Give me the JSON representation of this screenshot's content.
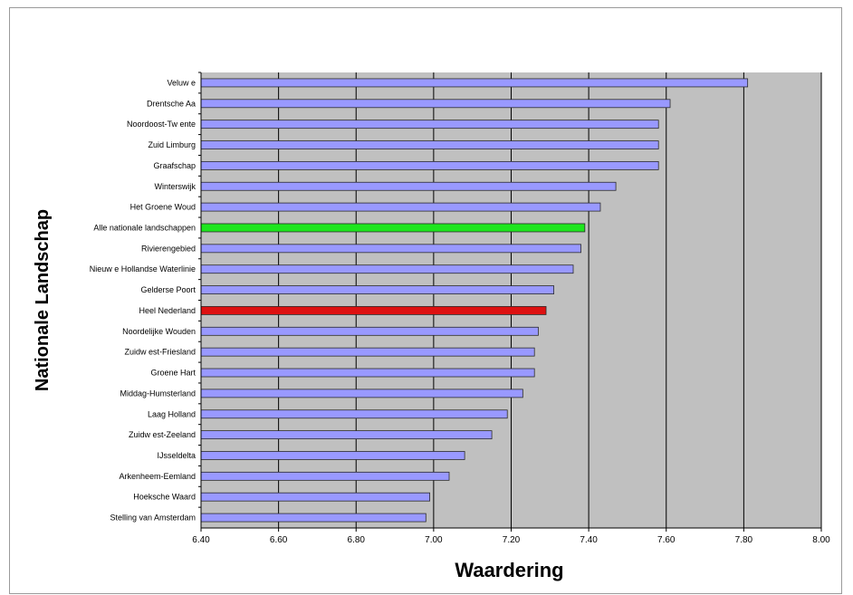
{
  "chart_data": {
    "type": "bar",
    "orientation": "horizontal",
    "title": "",
    "xlabel": "Waardering",
    "ylabel": "Nationale Landschap",
    "xlim": [
      6.4,
      8.0
    ],
    "xticks": [
      "6.40",
      "6.60",
      "6.80",
      "7.00",
      "7.20",
      "7.40",
      "7.60",
      "7.80",
      "8.00"
    ],
    "grid": true,
    "categories": [
      "Veluw e",
      "Drentsche Aa",
      "Noordoost-Tw ente",
      "Zuid Limburg",
      "Graafschap",
      "Winterswijk",
      "Het Groene Woud",
      "Alle nationale landschappen",
      "Rivierengebied",
      "Nieuw e Hollandse Waterlinie",
      "Gelderse Poort",
      "Heel Nederland",
      "Noordelijke Wouden",
      "Zuidw est-Friesland",
      "Groene Hart",
      "Middag-Humsterland",
      "Laag Holland",
      "Zuidw est-Zeeland",
      "IJsseldelta",
      "Arkenheem-Eemland",
      "Hoeksche Waard",
      "Stelling van Amsterdam"
    ],
    "values": [
      7.81,
      7.61,
      7.58,
      7.58,
      7.58,
      7.47,
      7.43,
      7.39,
      7.38,
      7.36,
      7.31,
      7.29,
      7.27,
      7.26,
      7.26,
      7.23,
      7.19,
      7.15,
      7.08,
      7.04,
      6.99,
      6.98
    ],
    "colors": {
      "default": "#9999ff",
      "highlight_all": "#1ee61e",
      "highlight_nl": "#dd1111",
      "plot_background": "#c0c0c0",
      "grid": "#000000"
    },
    "highlights": {
      "Alle nationale landschappen": "highlight_all",
      "Heel Nederland": "highlight_nl"
    }
  }
}
